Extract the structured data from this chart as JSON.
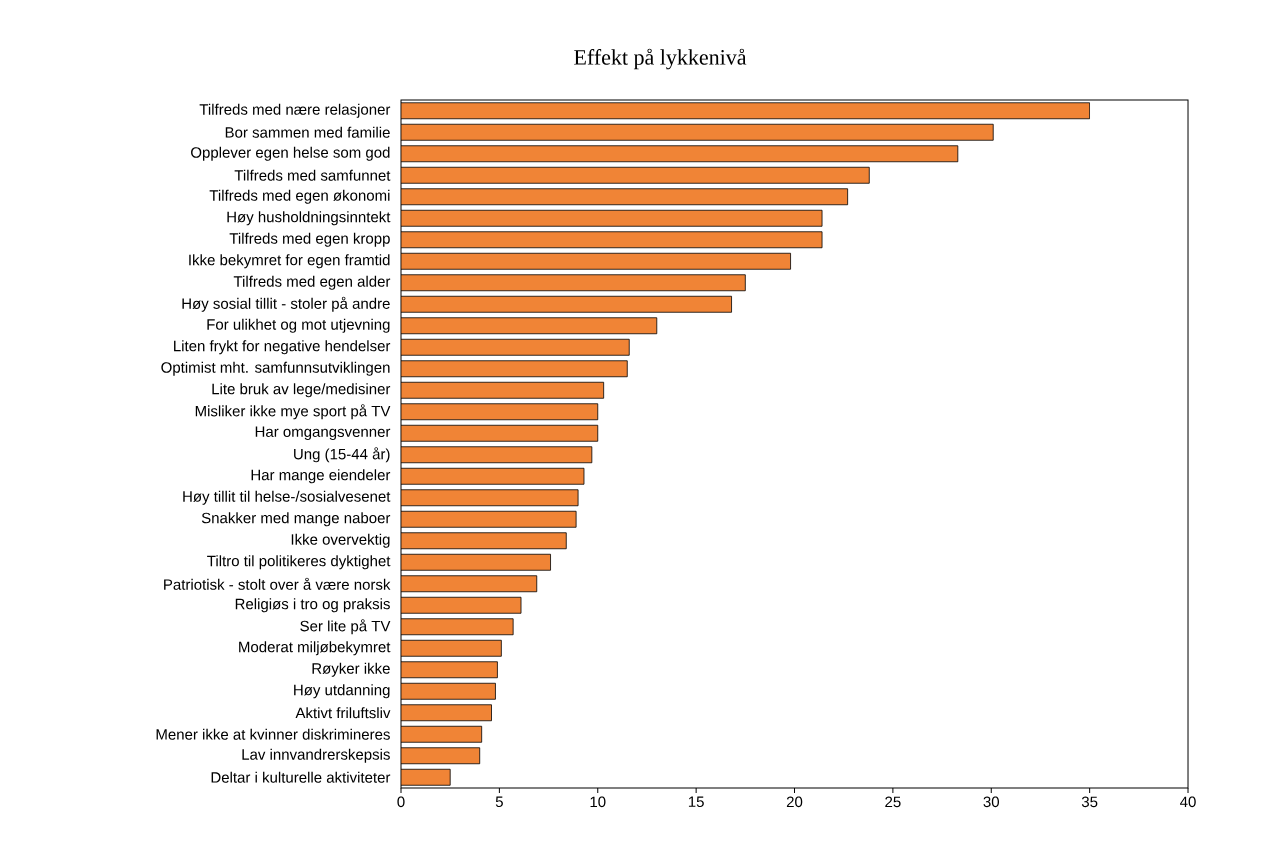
{
  "chart_data": {
    "type": "bar",
    "orientation": "horizontal",
    "title": "Effekt på lykkenivå",
    "categories": [
      "Tilfreds med nære relasjoner",
      "Bor sammen med familie",
      "Opplever egen helse som god",
      "Tilfreds med samfunnet",
      "Tilfreds med egen økonomi",
      "Høy husholdningsinntekt",
      "Tilfreds med egen kropp",
      "Ikke bekymret for egen framtid",
      "Tilfreds med egen alder",
      "Høy sosial tillit - stoler på andre",
      "For ulikhet og mot utjevning",
      "Liten frykt for negative hendelser",
      "Optimist mht. samfunnsutviklingen",
      "Lite bruk av lege/medisiner",
      "Misliker ikke mye sport på TV",
      "Har omgangsvenner",
      "Ung (15-44 år)",
      "Har mange eiendeler",
      "Høy tillit til helse-/sosialvesenet",
      "Snakker med mange naboer",
      "Ikke overvektig",
      "Tiltro til politikeres dyktighet",
      "Patriotisk - stolt over å være norsk",
      "Religiøs i tro og praksis",
      "Ser lite på TV",
      "Moderat miljøbekymret",
      "Røyker ikke",
      "Høy utdanning",
      "Aktivt friluftsliv",
      "Mener ikke at kvinner diskrimineres",
      "Lav innvandrerskepsis",
      "Deltar i kulturelle aktiviteter"
    ],
    "values": [
      35.0,
      30.1,
      28.3,
      23.8,
      22.7,
      21.4,
      21.4,
      19.8,
      17.5,
      16.8,
      13.0,
      11.6,
      11.5,
      10.3,
      10.0,
      10.0,
      9.7,
      9.3,
      9.0,
      8.9,
      8.4,
      7.6,
      6.9,
      6.1,
      5.7,
      5.1,
      4.9,
      4.8,
      4.6,
      4.1,
      4.0,
      2.5
    ],
    "color": "#f08436",
    "xlim": [
      0,
      40
    ],
    "xticks": [
      0,
      5,
      10,
      15,
      20,
      25,
      30,
      35,
      40
    ]
  }
}
